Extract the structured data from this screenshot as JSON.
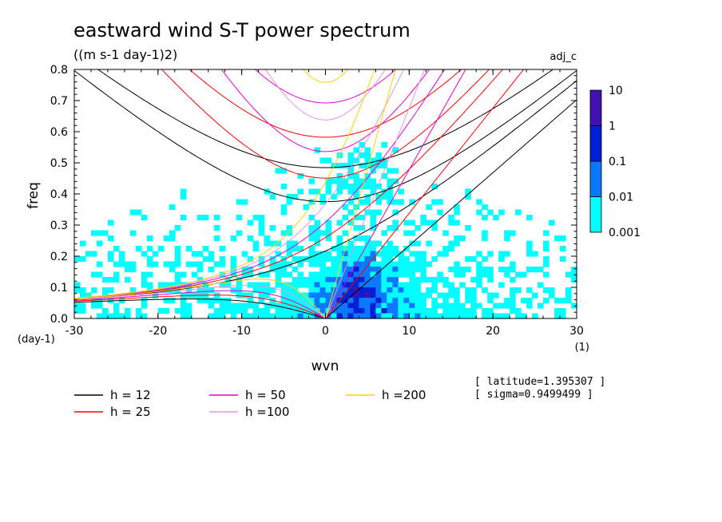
{
  "chart_data": {
    "type": "heatmap",
    "title": "eastward wind S-T power spectrum",
    "subtitle": "((m s-1 day-1)2)",
    "corner_label": "adj_c",
    "xlabel": "wvn",
    "ylabel": "freq",
    "x_unit": "(1)",
    "y_unit": "(day-1)",
    "xlim": [
      -30,
      30
    ],
    "ylim": [
      0,
      0.8
    ],
    "x_ticks": [
      -30,
      -20,
      -10,
      0,
      10,
      20,
      30
    ],
    "x_tick_labels": [
      "-30",
      "-20",
      "-10",
      "0",
      "10",
      "20",
      "30"
    ],
    "y_ticks": [
      0.0,
      0.1,
      0.2,
      0.3,
      0.4,
      0.5,
      0.6,
      0.7,
      0.8
    ],
    "y_tick_labels": [
      "0.0",
      "0.1",
      "0.2",
      "0.3",
      "0.4",
      "0.5",
      "0.6",
      "0.7",
      "0.8"
    ],
    "colorbar": {
      "levels": [
        0.001,
        0.01,
        0.1,
        1,
        10
      ],
      "level_labels": [
        "0.001",
        "0.01",
        "0.1",
        "1",
        "10"
      ],
      "colors": [
        "#00ffff",
        "#0a78ff",
        "#0020d8",
        "#4010b0"
      ]
    },
    "info": [
      "[ latitude=1.395307 ]",
      "[ sigma=0.9499499 ]"
    ],
    "series": [
      {
        "name": "h = 12",
        "h": 12,
        "color": "#000000"
      },
      {
        "name": "h = 25",
        "h": 25,
        "color": "#ff0000"
      },
      {
        "name": "h = 50",
        "h": 50,
        "color": "#e600d2"
      },
      {
        "name": "h =100",
        "h": 100,
        "color": "#e696e6"
      },
      {
        "name": "h =200",
        "h": 200,
        "color": "#ffd200"
      }
    ]
  }
}
